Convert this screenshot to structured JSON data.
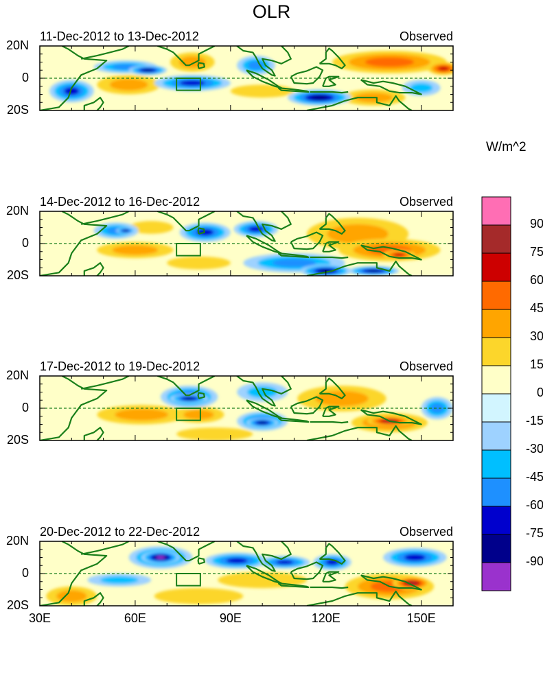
{
  "chart_data": {
    "type": "heatmap",
    "title": "OLR",
    "units": "W/m^2",
    "variable": "Observed OLR anomaly",
    "lon_range": [
      30,
      160
    ],
    "lat_range": [
      -20,
      20
    ],
    "x_ticks": [
      "30E",
      "60E",
      "90E",
      "120E",
      "150E"
    ],
    "x_tick_values": [
      30,
      60,
      90,
      120,
      150
    ],
    "y_ticks": [
      "20N",
      "0",
      "20S"
    ],
    "y_tick_values": [
      20,
      0,
      -20
    ],
    "colorbar": {
      "levels": [
        90,
        75,
        60,
        45,
        30,
        15,
        0,
        -15,
        -30,
        -45,
        -60,
        -75,
        -90
      ],
      "colors": [
        "#ff6eb4",
        "#a52a2a",
        "#cd0000",
        "#ff6a00",
        "#ffa500",
        "#fcd62b",
        "#ffffc8",
        "#d2f5ff",
        "#9ed2ff",
        "#00bfff",
        "#1e90ff",
        "#0000cd",
        "#00008b",
        "#9a32cd"
      ]
    },
    "panels": [
      {
        "period": "11-Dec-2012 to 13-Dec-2012",
        "label": "Observed",
        "blobs": [
          {
            "lon": 40,
            "lat": -8,
            "rx": 7,
            "ry": 7,
            "v": -60
          },
          {
            "lon": 57,
            "lat": 7,
            "rx": 10,
            "ry": 4,
            "v": -45
          },
          {
            "lon": 64,
            "lat": 5,
            "rx": 6,
            "ry": 3,
            "v": -75
          },
          {
            "lon": 78,
            "lat": -3,
            "rx": 12,
            "ry": 5,
            "v": -60
          },
          {
            "lon": 98,
            "lat": 8,
            "rx": 6,
            "ry": 6,
            "v": -45
          },
          {
            "lon": 118,
            "lat": -12,
            "rx": 10,
            "ry": 5,
            "v": -75
          },
          {
            "lon": 58,
            "lat": -4,
            "rx": 10,
            "ry": 6,
            "v": 30
          },
          {
            "lon": 78,
            "lat": 10,
            "rx": 7,
            "ry": 6,
            "v": 30
          },
          {
            "lon": 100,
            "lat": -8,
            "rx": 10,
            "ry": 4,
            "v": 15
          },
          {
            "lon": 140,
            "lat": 10,
            "rx": 18,
            "ry": 7,
            "v": 45
          },
          {
            "lon": 157,
            "lat": 6,
            "rx": 5,
            "ry": 4,
            "v": 60
          },
          {
            "lon": 135,
            "lat": -12,
            "rx": 10,
            "ry": 5,
            "v": 30
          },
          {
            "lon": 150,
            "lat": -6,
            "rx": 6,
            "ry": 5,
            "v": -30
          }
        ]
      },
      {
        "period": "14-Dec-2012 to 16-Dec-2012",
        "label": "Observed",
        "blobs": [
          {
            "lon": 54,
            "lat": 8,
            "rx": 7,
            "ry": 5,
            "v": -45
          },
          {
            "lon": 57,
            "lat": 8,
            "rx": 3,
            "ry": 2,
            "v": -75
          },
          {
            "lon": 82,
            "lat": 7,
            "rx": 8,
            "ry": 6,
            "v": -60
          },
          {
            "lon": 98,
            "lat": 9,
            "rx": 7,
            "ry": 5,
            "v": -60
          },
          {
            "lon": 110,
            "lat": -12,
            "rx": 16,
            "ry": 6,
            "v": -45
          },
          {
            "lon": 120,
            "lat": -17,
            "rx": 8,
            "ry": 4,
            "v": -75
          },
          {
            "lon": 135,
            "lat": -17,
            "rx": 8,
            "ry": 3,
            "v": -75
          },
          {
            "lon": 60,
            "lat": -4,
            "rx": 12,
            "ry": 5,
            "v": 30
          },
          {
            "lon": 65,
            "lat": 10,
            "rx": 7,
            "ry": 4,
            "v": 15
          },
          {
            "lon": 130,
            "lat": 6,
            "rx": 16,
            "ry": 10,
            "v": 30
          },
          {
            "lon": 140,
            "lat": -4,
            "rx": 16,
            "ry": 7,
            "v": 45
          },
          {
            "lon": 143,
            "lat": -7,
            "rx": 5,
            "ry": 3,
            "v": 60
          },
          {
            "lon": 80,
            "lat": -12,
            "rx": 10,
            "ry": 4,
            "v": 15
          }
        ]
      },
      {
        "period": "17-Dec-2012 to 19-Dec-2012",
        "label": "Observed",
        "blobs": [
          {
            "lon": 77,
            "lat": 7,
            "rx": 9,
            "ry": 7,
            "v": -60
          },
          {
            "lon": 77,
            "lat": 6,
            "rx": 6,
            "ry": 3,
            "v": -75
          },
          {
            "lon": 100,
            "lat": -8,
            "rx": 8,
            "ry": 6,
            "v": -60
          },
          {
            "lon": 100,
            "lat": -9,
            "rx": 5,
            "ry": 3,
            "v": -75
          },
          {
            "lon": 155,
            "lat": 0,
            "rx": 5,
            "ry": 7,
            "v": -45
          },
          {
            "lon": 100,
            "lat": 10,
            "rx": 8,
            "ry": 6,
            "v": -30
          },
          {
            "lon": 62,
            "lat": -4,
            "rx": 14,
            "ry": 6,
            "v": 30
          },
          {
            "lon": 80,
            "lat": -4,
            "rx": 8,
            "ry": 5,
            "v": 30
          },
          {
            "lon": 125,
            "lat": 6,
            "rx": 14,
            "ry": 8,
            "v": 30
          },
          {
            "lon": 140,
            "lat": -9,
            "rx": 12,
            "ry": 6,
            "v": 45
          },
          {
            "lon": 140,
            "lat": -8,
            "rx": 7,
            "ry": 3,
            "v": 75
          },
          {
            "lon": 85,
            "lat": -16,
            "rx": 12,
            "ry": 4,
            "v": 15
          }
        ]
      },
      {
        "period": "20-Dec-2012 to 22-Dec-2012",
        "label": "Observed",
        "blobs": [
          {
            "lon": 68,
            "lat": 10,
            "rx": 10,
            "ry": 7,
            "v": -60
          },
          {
            "lon": 68,
            "lat": 10,
            "rx": 6,
            "ry": 4,
            "v": -90
          },
          {
            "lon": 92,
            "lat": 8,
            "rx": 10,
            "ry": 5,
            "v": -60
          },
          {
            "lon": 107,
            "lat": 7,
            "rx": 8,
            "ry": 4,
            "v": -60
          },
          {
            "lon": 122,
            "lat": 7,
            "rx": 6,
            "ry": 5,
            "v": -60
          },
          {
            "lon": 148,
            "lat": 10,
            "rx": 10,
            "ry": 6,
            "v": -60
          },
          {
            "lon": 55,
            "lat": -4,
            "rx": 10,
            "ry": 4,
            "v": -30
          },
          {
            "lon": 100,
            "lat": -4,
            "rx": 14,
            "ry": 5,
            "v": 15
          },
          {
            "lon": 140,
            "lat": -8,
            "rx": 14,
            "ry": 8,
            "v": 45
          },
          {
            "lon": 147,
            "lat": -6,
            "rx": 6,
            "ry": 4,
            "v": 75
          },
          {
            "lon": 80,
            "lat": -14,
            "rx": 14,
            "ry": 5,
            "v": 15
          },
          {
            "lon": 40,
            "lat": -14,
            "rx": 8,
            "ry": 6,
            "v": 30
          }
        ]
      }
    ]
  }
}
